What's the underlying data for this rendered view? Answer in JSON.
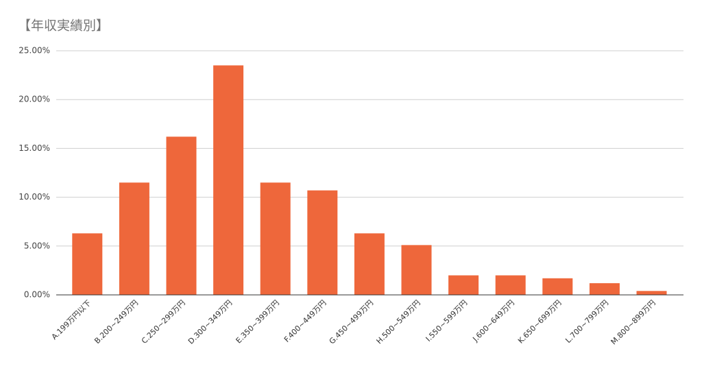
{
  "chart_data": {
    "type": "bar",
    "title": "【年収実績別】",
    "categories": [
      "A.199万円以下",
      "B.200~249万円",
      "C.250~299万円",
      "D.300~349万円",
      "E.350~399万円",
      "F.400~449万円",
      "G.450~499万円",
      "H.500~549万円",
      "I.550~599万円",
      "J.600~649万円",
      "K.650~699万円",
      "L.700~799万円",
      "M.800~899万円"
    ],
    "values": [
      6.3,
      11.5,
      16.2,
      23.5,
      11.5,
      10.7,
      6.3,
      5.1,
      2.0,
      2.0,
      1.7,
      1.2,
      0.4
    ],
    "color": "#ee673b",
    "ylim": [
      0,
      25
    ],
    "yticks": [
      {
        "value": 0,
        "label": "0.00%"
      },
      {
        "value": 5,
        "label": "5.00%"
      },
      {
        "value": 10,
        "label": "10.00%"
      },
      {
        "value": 15,
        "label": "15.00%"
      },
      {
        "value": 20,
        "label": "20.00%"
      },
      {
        "value": 25,
        "label": "25.00%"
      }
    ],
    "grid": true
  }
}
